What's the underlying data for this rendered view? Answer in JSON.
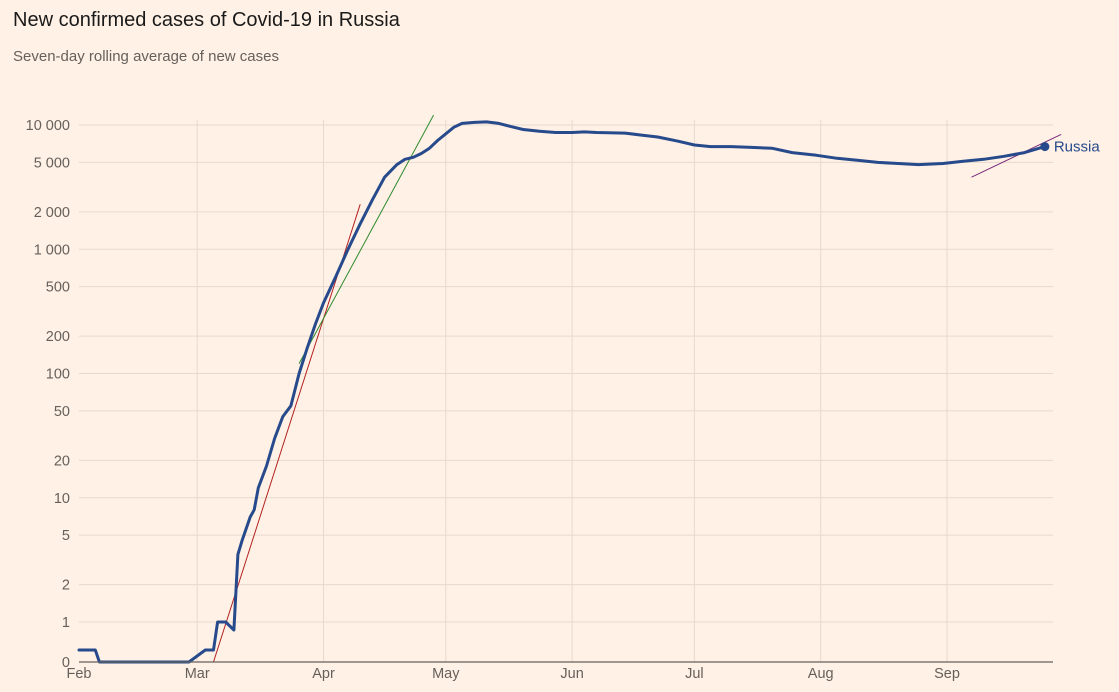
{
  "chart_data": {
    "type": "line",
    "title": "New confirmed cases of Covid-19 in Russia",
    "subtitle": "Seven-day rolling average of new cases",
    "xlabel": "",
    "ylabel": "",
    "scale": "log",
    "grid": true,
    "x_ticks": [
      "Feb",
      "Mar",
      "Apr",
      "May",
      "Jun",
      "Jul",
      "Aug",
      "Sep"
    ],
    "y_ticks": [
      0,
      1,
      2,
      5,
      10,
      20,
      50,
      100,
      200,
      500,
      1000,
      2000,
      5000,
      10000
    ],
    "y_tick_labels": [
      "0",
      "1",
      "2",
      "5",
      "10",
      "20",
      "50",
      "100",
      "200",
      "500",
      "1 000",
      "2 000",
      "5 000",
      "10 000"
    ],
    "ylim": [
      0,
      10000
    ],
    "xlim": [
      "2020-02-01",
      "2020-09-27"
    ],
    "colors": {
      "series": "#264a8b",
      "trend_red": "#b22222",
      "trend_green": "#2e8b2e",
      "trend_purple": "#7a2a7a",
      "grid": "#e6d9ce",
      "background": "#fff1e5"
    },
    "series": [
      {
        "name": "Russia",
        "end_marker": true,
        "points": [
          [
            "2020-02-01",
            0.3
          ],
          [
            "2020-02-05",
            0.3
          ],
          [
            "2020-02-06",
            0
          ],
          [
            "2020-02-28",
            0
          ],
          [
            "2020-03-03",
            0.3
          ],
          [
            "2020-03-05",
            0.3
          ],
          [
            "2020-03-06",
            1
          ],
          [
            "2020-03-08",
            1
          ],
          [
            "2020-03-10",
            0.8
          ],
          [
            "2020-03-11",
            3.5
          ],
          [
            "2020-03-12",
            4.5
          ],
          [
            "2020-03-14",
            7
          ],
          [
            "2020-03-15",
            8
          ],
          [
            "2020-03-16",
            12
          ],
          [
            "2020-03-18",
            18
          ],
          [
            "2020-03-20",
            30
          ],
          [
            "2020-03-22",
            45
          ],
          [
            "2020-03-24",
            55
          ],
          [
            "2020-03-26",
            100
          ],
          [
            "2020-03-28",
            160
          ],
          [
            "2020-03-30",
            250
          ],
          [
            "2020-04-01",
            370
          ],
          [
            "2020-04-04",
            600
          ],
          [
            "2020-04-07",
            1000
          ],
          [
            "2020-04-10",
            1600
          ],
          [
            "2020-04-13",
            2500
          ],
          [
            "2020-04-16",
            3800
          ],
          [
            "2020-04-19",
            4800
          ],
          [
            "2020-04-21",
            5300
          ],
          [
            "2020-04-23",
            5500
          ],
          [
            "2020-04-25",
            5900
          ],
          [
            "2020-04-27",
            6500
          ],
          [
            "2020-04-29",
            7500
          ],
          [
            "2020-05-01",
            8500
          ],
          [
            "2020-05-03",
            9600
          ],
          [
            "2020-05-05",
            10300
          ],
          [
            "2020-05-08",
            10500
          ],
          [
            "2020-05-11",
            10600
          ],
          [
            "2020-05-14",
            10300
          ],
          [
            "2020-05-17",
            9700
          ],
          [
            "2020-05-20",
            9200
          ],
          [
            "2020-05-24",
            8900
          ],
          [
            "2020-05-28",
            8700
          ],
          [
            "2020-06-01",
            8700
          ],
          [
            "2020-06-04",
            8800
          ],
          [
            "2020-06-07",
            8700
          ],
          [
            "2020-06-14",
            8600
          ],
          [
            "2020-06-18",
            8300
          ],
          [
            "2020-06-22",
            8000
          ],
          [
            "2020-06-27",
            7400
          ],
          [
            "2020-07-01",
            6900
          ],
          [
            "2020-07-05",
            6700
          ],
          [
            "2020-07-10",
            6700
          ],
          [
            "2020-07-15",
            6600
          ],
          [
            "2020-07-20",
            6500
          ],
          [
            "2020-07-25",
            6000
          ],
          [
            "2020-07-31",
            5700
          ],
          [
            "2020-08-05",
            5400
          ],
          [
            "2020-08-10",
            5200
          ],
          [
            "2020-08-15",
            5000
          ],
          [
            "2020-08-20",
            4900
          ],
          [
            "2020-08-25",
            4800
          ],
          [
            "2020-08-31",
            4900
          ],
          [
            "2020-09-05",
            5100
          ],
          [
            "2020-09-10",
            5300
          ],
          [
            "2020-09-15",
            5600
          ],
          [
            "2020-09-20",
            6000
          ],
          [
            "2020-09-25",
            6700
          ]
        ]
      }
    ],
    "trend_lines": [
      {
        "color": "red",
        "points": [
          [
            "2020-03-05",
            0
          ],
          [
            "2020-04-10",
            2300
          ]
        ]
      },
      {
        "color": "green",
        "points": [
          [
            "2020-03-26",
            120
          ],
          [
            "2020-04-28",
            12000
          ]
        ]
      },
      {
        "color": "purple",
        "points": [
          [
            "2020-09-07",
            3800
          ],
          [
            "2020-09-29",
            8400
          ]
        ]
      }
    ],
    "annotations": [
      {
        "text": "Russia",
        "position": "end of series, right"
      }
    ]
  }
}
